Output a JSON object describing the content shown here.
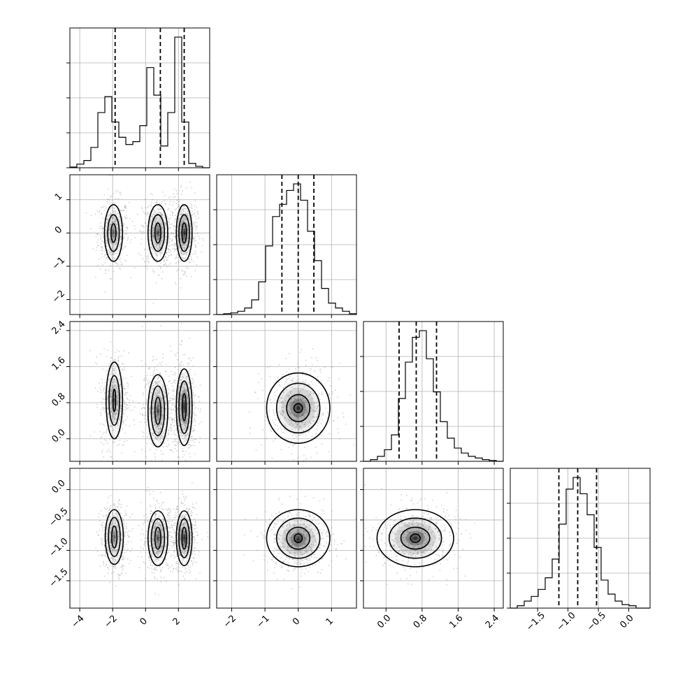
{
  "chart_data": {
    "type": "corner",
    "n_params": 4,
    "grid": true,
    "axes": [
      {
        "range": [
          -4.6,
          3.9
        ],
        "ticks": [
          -4,
          -2,
          0,
          2
        ],
        "tick_labels": [
          "−4",
          "−2",
          "0",
          "2"
        ]
      },
      {
        "range": [
          -2.45,
          1.75
        ],
        "ticks": [
          -2,
          -1,
          0,
          1
        ],
        "tick_labels": [
          "−2",
          "−1",
          "0",
          "1"
        ]
      },
      {
        "range": [
          -0.5,
          2.6
        ],
        "ticks": [
          0.0,
          0.8,
          1.6,
          2.4
        ],
        "tick_labels": [
          "0.0",
          "0.8",
          "1.6",
          "2.4"
        ]
      },
      {
        "range": [
          -1.95,
          0.35
        ],
        "ticks": [
          -1.5,
          -1.0,
          -0.5,
          0.0
        ],
        "tick_labels": [
          "−1.5",
          "−1.0",
          "−0.5",
          "0.0"
        ]
      }
    ],
    "histograms": [
      {
        "type": "histogram",
        "bin_edges": [
          -4.6,
          -4.175,
          -3.75,
          -3.325,
          -2.9,
          -2.475,
          -2.05,
          -1.625,
          -1.2,
          -0.775,
          -0.35,
          0.075,
          0.5,
          0.925,
          1.35,
          1.775,
          2.2,
          2.625,
          3.05,
          3.475,
          3.9
        ],
        "values": [
          1,
          5,
          10,
          28,
          76,
          98,
          63,
          42,
          32,
          36,
          58,
          138,
          100,
          30,
          76,
          180,
          63,
          6,
          2,
          0
        ],
        "quantiles": [
          -1.85,
          0.9,
          2.35
        ]
      },
      {
        "type": "histogram",
        "bin_edges": [
          -2.45,
          -2.24,
          -2.03,
          -1.82,
          -1.61,
          -1.4,
          -1.19,
          -0.98,
          -0.77,
          -0.56,
          -0.35,
          -0.14,
          0.07,
          0.28,
          0.49,
          0.7,
          0.91,
          1.12,
          1.33,
          1.54,
          1.75
        ],
        "values": [
          0,
          1,
          2,
          4,
          8,
          18,
          40,
          84,
          120,
          135,
          152,
          160,
          140,
          102,
          66,
          32,
          14,
          8,
          4,
          1
        ],
        "quantiles": [
          -0.49,
          0.0,
          0.47
        ]
      },
      {
        "type": "histogram",
        "bin_edges": [
          -0.5,
          -0.345,
          -0.19,
          -0.035,
          0.12,
          0.275,
          0.43,
          0.585,
          0.74,
          0.895,
          1.05,
          1.205,
          1.36,
          1.515,
          1.67,
          1.825,
          1.98,
          2.135,
          2.29,
          2.445,
          2.6
        ],
        "values": [
          0,
          2,
          6,
          14,
          32,
          76,
          120,
          150,
          158,
          124,
          84,
          48,
          28,
          16,
          10,
          6,
          4,
          2,
          1,
          0
        ],
        "quantiles": [
          0.29,
          0.67,
          1.12
        ]
      },
      {
        "type": "histogram",
        "bin_edges": [
          -1.95,
          -1.835,
          -1.72,
          -1.605,
          -1.49,
          -1.375,
          -1.26,
          -1.145,
          -1.03,
          -0.915,
          -0.8,
          -0.685,
          -0.57,
          -0.455,
          -0.34,
          -0.225,
          -0.11,
          0.005,
          0.12,
          0.235,
          0.35
        ],
        "values": [
          0,
          2,
          6,
          10,
          16,
          26,
          42,
          72,
          102,
          112,
          98,
          80,
          52,
          24,
          12,
          6,
          3,
          2,
          0,
          0
        ],
        "quantiles": [
          -1.15,
          -0.84,
          -0.53
        ]
      }
    ],
    "pairs": [
      {
        "type": "scatter-density",
        "xi": 0,
        "yi": 1,
        "clusters": [
          {
            "cx": -1.95,
            "cy": 0.0,
            "sx": 0.38,
            "sy": 0.42,
            "peak": 0.55
          },
          {
            "cx": 0.75,
            "cy": 0.0,
            "sx": 0.38,
            "sy": 0.42,
            "peak": 0.75
          },
          {
            "cx": 2.35,
            "cy": 0.0,
            "sx": 0.32,
            "sy": 0.42,
            "peak": 1.0
          }
        ],
        "contours": [
          {
            "cx": -1.95,
            "cy": 0.0,
            "radii": [
              [
                0.55,
                0.85
              ],
              [
                0.35,
                0.55
              ],
              [
                0.15,
                0.28
              ]
            ]
          },
          {
            "cx": 0.75,
            "cy": 0.0,
            "radii": [
              [
                0.6,
                0.85
              ],
              [
                0.4,
                0.55
              ],
              [
                0.18,
                0.3
              ]
            ]
          },
          {
            "cx": 2.35,
            "cy": 0.0,
            "radii": [
              [
                0.48,
                0.85
              ],
              [
                0.32,
                0.55
              ],
              [
                0.14,
                0.3
              ]
            ]
          }
        ]
      },
      {
        "type": "scatter-density",
        "xi": 0,
        "yi": 2,
        "clusters": [
          {
            "cx": -1.9,
            "cy": 0.85,
            "sx": 0.35,
            "sy": 0.42,
            "peak": 0.6
          },
          {
            "cx": 0.75,
            "cy": 0.62,
            "sx": 0.38,
            "sy": 0.42,
            "peak": 0.75
          },
          {
            "cx": 2.35,
            "cy": 0.7,
            "sx": 0.32,
            "sy": 0.45,
            "peak": 1.0
          }
        ],
        "contours": [
          {
            "cx": -1.9,
            "cy": 0.85,
            "radii": [
              [
                0.5,
                0.85
              ],
              [
                0.32,
                0.55
              ],
              [
                0.08,
                0.25
              ]
            ]
          },
          {
            "cx": 0.75,
            "cy": 0.62,
            "radii": [
              [
                0.6,
                0.8
              ],
              [
                0.4,
                0.55
              ],
              [
                0.18,
                0.3
              ]
            ]
          },
          {
            "cx": 2.35,
            "cy": 0.7,
            "radii": [
              [
                0.48,
                0.85
              ],
              [
                0.32,
                0.58
              ],
              [
                0.12,
                0.3
              ]
            ]
          }
        ]
      },
      {
        "type": "scatter-density",
        "xi": 1,
        "yi": 2,
        "clusters": [
          {
            "cx": 0.0,
            "cy": 0.68,
            "sx": 0.42,
            "sy": 0.38,
            "peak": 1.0
          }
        ],
        "contours": [
          {
            "cx": 0.0,
            "cy": 0.68,
            "radii": [
              [
                0.95,
                0.78
              ],
              [
                0.65,
                0.55
              ],
              [
                0.35,
                0.3
              ],
              [
                0.13,
                0.1
              ]
            ]
          }
        ]
      },
      {
        "type": "scatter-density",
        "xi": 0,
        "yi": 3,
        "clusters": [
          {
            "cx": -1.9,
            "cy": -0.78,
            "sx": 0.35,
            "sy": 0.22,
            "peak": 0.55
          },
          {
            "cx": 0.75,
            "cy": -0.8,
            "sx": 0.38,
            "sy": 0.22,
            "peak": 0.75
          },
          {
            "cx": 2.35,
            "cy": -0.8,
            "sx": 0.32,
            "sy": 0.22,
            "peak": 1.0
          }
        ],
        "contours": [
          {
            "cx": -1.9,
            "cy": -0.78,
            "radii": [
              [
                0.55,
                0.45
              ],
              [
                0.36,
                0.32
              ],
              [
                0.16,
                0.18
              ]
            ]
          },
          {
            "cx": 0.75,
            "cy": -0.8,
            "radii": [
              [
                0.6,
                0.45
              ],
              [
                0.4,
                0.32
              ],
              [
                0.18,
                0.18
              ]
            ]
          },
          {
            "cx": 2.35,
            "cy": -0.8,
            "radii": [
              [
                0.48,
                0.45
              ],
              [
                0.32,
                0.32
              ],
              [
                0.14,
                0.18
              ]
            ]
          }
        ]
      },
      {
        "type": "scatter-density",
        "xi": 1,
        "yi": 3,
        "clusters": [
          {
            "cx": 0.0,
            "cy": -0.82,
            "sx": 0.42,
            "sy": 0.22,
            "peak": 1.0
          }
        ],
        "contours": [
          {
            "cx": 0.0,
            "cy": -0.8,
            "radii": [
              [
                0.95,
                0.47
              ],
              [
                0.65,
                0.33
              ],
              [
                0.35,
                0.18
              ],
              [
                0.12,
                0.07
              ]
            ]
          }
        ]
      },
      {
        "type": "scatter-density",
        "xi": 2,
        "yi": 3,
        "clusters": [
          {
            "cx": 0.65,
            "cy": -0.8,
            "sx": 0.38,
            "sy": 0.22,
            "peak": 1.0
          }
        ],
        "contours": [
          {
            "cx": 0.65,
            "cy": -0.8,
            "radii": [
              [
                0.85,
                0.47
              ],
              [
                0.58,
                0.33
              ],
              [
                0.32,
                0.18
              ],
              [
                0.11,
                0.07
              ]
            ]
          }
        ]
      }
    ]
  }
}
